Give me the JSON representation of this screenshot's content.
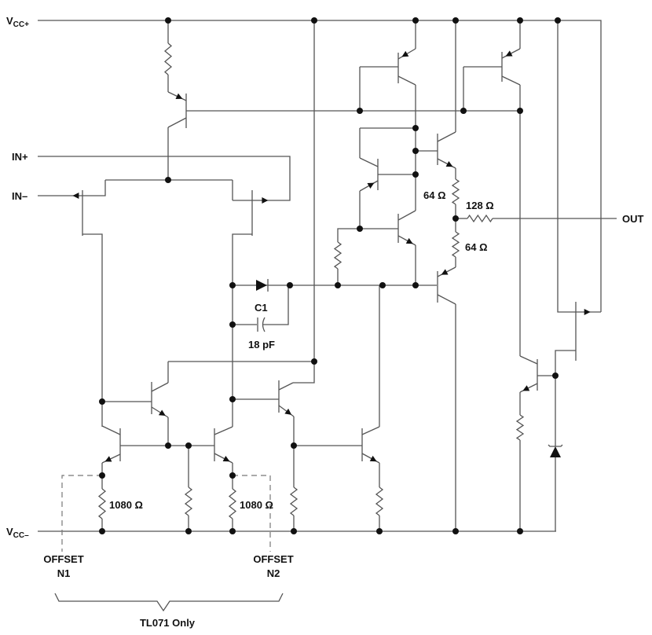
{
  "labels": {
    "vcc_plus": {
      "main": "V",
      "sub": "CC+"
    },
    "vcc_minus": {
      "main": "V",
      "sub": "CC–"
    },
    "in_plus": "IN+",
    "in_minus": "IN–",
    "out": "OUT",
    "c1": "C1",
    "c1_value": "18 pF",
    "r_64_top": "64 Ω",
    "r_128": "128 Ω",
    "r_64_bottom": "64 Ω",
    "r_1080_left": "1080 Ω",
    "r_1080_right": "1080 Ω",
    "offset_n1": [
      "OFFSET",
      "N1"
    ],
    "offset_n2": [
      "OFFSET",
      "N2"
    ],
    "bracket_note": "TL071 Only"
  },
  "colors": {
    "wire": "#555555",
    "ink": "#111111"
  }
}
